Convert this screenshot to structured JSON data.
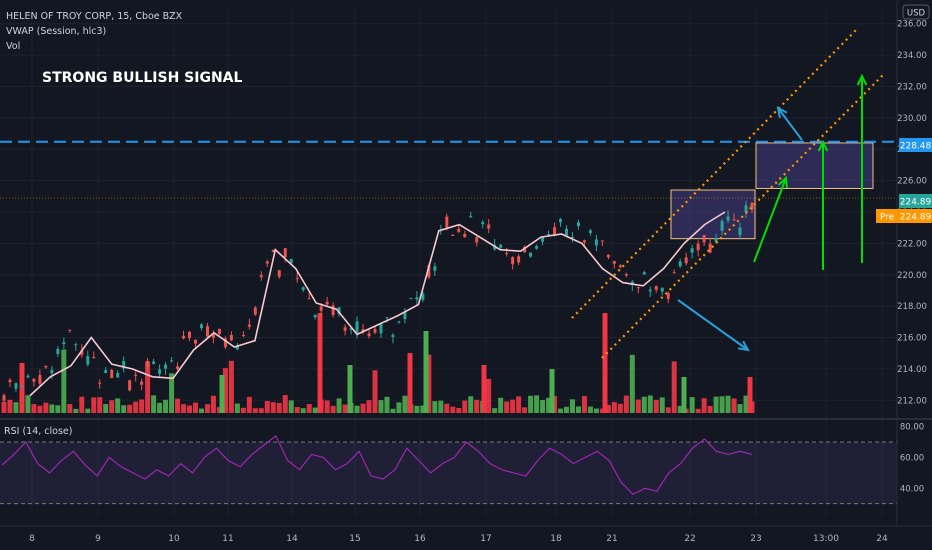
{
  "header": {
    "symbol_line": "HELEN OF TROY CORP, 15, Cboe BZX",
    "indicator_vwap": "VWAP (Session, hlc3)",
    "indicator_vol": "Vol"
  },
  "annotation_text": "STRONG BULLISH SIGNAL",
  "currency_button": "USD",
  "price_axis": {
    "ticks": [
      212,
      214,
      216,
      218,
      220,
      222,
      224,
      226,
      228,
      230,
      232,
      234,
      236
    ],
    "labels": [
      "212.00",
      "214.00",
      "216.00",
      "218.00",
      "220.00",
      "222.00",
      "224.00",
      "226.00",
      "228.00",
      "230.00",
      "232.00",
      "234.00",
      "236.00"
    ],
    "ylim": [
      211,
      237
    ]
  },
  "price_badges": {
    "resistance": "228.48",
    "last": "224.89",
    "pre_label": "Pre",
    "pre_value": "224.89"
  },
  "rsi": {
    "title": "RSI (14, close)",
    "axis_labels": [
      "80.00",
      "60.00",
      "40.00"
    ],
    "ticks": [
      80,
      60,
      40
    ],
    "upper_band": 70,
    "lower_band": 30,
    "ylim": [
      22,
      83
    ]
  },
  "time_axis": {
    "labels": [
      "8",
      "9",
      "10",
      "11",
      "14",
      "15",
      "16",
      "17",
      "18",
      "21",
      "22",
      "23",
      "13:00",
      "24"
    ]
  },
  "colors": {
    "background": "#131722",
    "up": "#26a69a",
    "down": "#ef5350",
    "vol_up": "#4caf50",
    "vol_down": "#f23645",
    "vwap": "#f8c8d0",
    "rsi": "#9c27b0",
    "resistance": "#2196f3",
    "channel": "#ff9800",
    "green_arrow": "#00e000",
    "blue_arrow": "#2a9fd6",
    "pre_badge": "#ff9800"
  },
  "chart_data": {
    "type": "line",
    "title": "HELEN OF TROY CORP, 15, Cboe BZX",
    "x_labels": [
      "8",
      "9",
      "10",
      "11",
      "14",
      "15",
      "16",
      "17",
      "18",
      "21",
      "22",
      "23",
      "13:00",
      "24"
    ],
    "series": [
      {
        "name": "VWAP (Session, hlc3)",
        "points": [
          [
            "8",
            212.3
          ],
          [
            "8",
            213.5
          ],
          [
            "8",
            214.2
          ],
          [
            "9",
            216.0
          ],
          [
            "9",
            214.3
          ],
          [
            "9",
            214.0
          ],
          [
            "10",
            213.5
          ],
          [
            "10",
            213.4
          ],
          [
            "11",
            215.2
          ],
          [
            "11",
            216.3
          ],
          [
            "11",
            215.4
          ],
          [
            "11",
            215.8
          ],
          [
            "14",
            221.6
          ],
          [
            "14",
            220.4
          ],
          [
            "14",
            218.2
          ],
          [
            "15",
            217.8
          ],
          [
            "15",
            216.2
          ],
          [
            "15",
            216.8
          ],
          [
            "15",
            217.4
          ],
          [
            "16",
            218.1
          ],
          [
            "16",
            222.8
          ],
          [
            "16",
            223.2
          ],
          [
            "16",
            222.4
          ],
          [
            "17",
            221.6
          ],
          [
            "17",
            221.5
          ],
          [
            "17",
            222.4
          ],
          [
            "18",
            222.6
          ],
          [
            "18",
            222.0
          ],
          [
            "21",
            220.4
          ],
          [
            "21",
            219.5
          ],
          [
            "21",
            219.3
          ],
          [
            "22",
            220.4
          ],
          [
            "22",
            222.0
          ],
          [
            "22",
            223.2
          ],
          [
            "23",
            224.0
          ]
        ]
      },
      {
        "name": "RSI (14, close)",
        "values": [
          55,
          62,
          70,
          56,
          50,
          58,
          64,
          55,
          48,
          60,
          54,
          50,
          46,
          52,
          48,
          56,
          50,
          60,
          66,
          58,
          54,
          62,
          68,
          74,
          58,
          52,
          62,
          60,
          52,
          56,
          64,
          48,
          46,
          52,
          66,
          58,
          50,
          56,
          60,
          70,
          64,
          56,
          52,
          50,
          48,
          58,
          66,
          62,
          56,
          60,
          64,
          58,
          44,
          36,
          40,
          38,
          50,
          56,
          66,
          72,
          64,
          62,
          64,
          62
        ]
      }
    ],
    "annotations": {
      "horizontal_levels": [
        228.48,
        224.89
      ],
      "highlighted_zones": [
        [
          222.3,
          225.4
        ],
        [
          225.5,
          228.4
        ]
      ],
      "channel": "rising parallel channel",
      "arrows": "green arrows pointing up; blue arrow pointing down-right"
    },
    "ylim": [
      211,
      237
    ]
  }
}
